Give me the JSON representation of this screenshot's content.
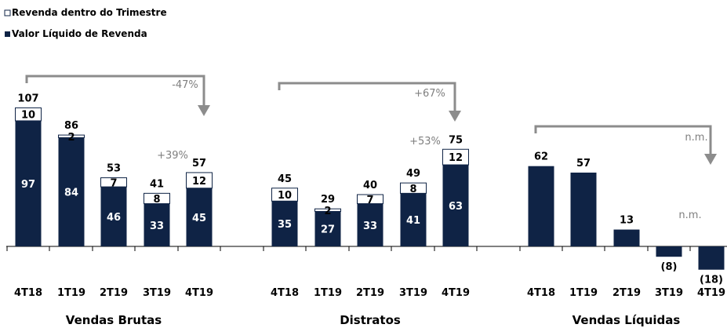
{
  "colors": {
    "dark": "#0f2345",
    "light": "#ffffff",
    "arrow": "#8c8c8c",
    "annotation": "#7f7f7f",
    "axis": "#000000"
  },
  "legend": [
    {
      "name": "Revenda dentro do Trimestre",
      "style": "outline"
    },
    {
      "name": "Valor Líquido de Revenda",
      "style": "filled"
    }
  ],
  "chart_data": {
    "type": "bar",
    "stacked": true,
    "groups": [
      {
        "title": "Vendas Brutas",
        "categories": [
          "4T18",
          "1T19",
          "2T19",
          "3T19",
          "4T19"
        ],
        "series": [
          {
            "name": "Valor Líquido de Revenda",
            "values": [
              97,
              84,
              46,
              33,
              45
            ],
            "labels": [
              "97",
              "84",
              "46",
              "33",
              "45"
            ]
          },
          {
            "name": "Revenda dentro do Trimestre",
            "values": [
              10,
              2,
              7,
              8,
              12
            ],
            "labels": [
              "10",
              "2",
              "7",
              "8",
              "12"
            ]
          }
        ],
        "totals": [
          "107",
          "86",
          "53",
          "41",
          "57"
        ],
        "annotations": [
          {
            "text": "-47%",
            "type": "arrow",
            "from": 0,
            "to": 4
          },
          {
            "text": "+39%",
            "type": "label",
            "at": 3
          }
        ]
      },
      {
        "title": "Distratos",
        "categories": [
          "4T18",
          "1T19",
          "2T19",
          "3T19",
          "4T19"
        ],
        "series": [
          {
            "name": "Valor Líquido de Revenda",
            "values": [
              35,
              27,
              33,
              41,
              63
            ],
            "labels": [
              "35",
              "27",
              "33",
              "41",
              "63"
            ]
          },
          {
            "name": "Revenda dentro do Trimestre",
            "values": [
              10,
              2,
              7,
              8,
              12
            ],
            "labels": [
              "10",
              "2",
              "7",
              "8",
              "12"
            ]
          }
        ],
        "totals": [
          "45",
          "29",
          "40",
          "49",
          "75"
        ],
        "annotations": [
          {
            "text": "+67%",
            "type": "arrow",
            "from": 0,
            "to": 4
          },
          {
            "text": "+53%",
            "type": "label",
            "at": 4
          }
        ]
      },
      {
        "title": "Vendas Líquidas",
        "categories": [
          "4T18",
          "1T19",
          "2T19",
          "3T19",
          "4T19"
        ],
        "series": [
          {
            "name": "Valor Líquido de Revenda",
            "values": [
              62,
              57,
              13,
              -8,
              -18
            ],
            "labels": []
          }
        ],
        "totals": [
          "62",
          "57",
          "13",
          "(8)",
          "(18)"
        ],
        "annotations": [
          {
            "text": "n.m.",
            "type": "arrow",
            "from": 0,
            "to": 4
          },
          {
            "text": "n.m.",
            "type": "label",
            "at": 4
          }
        ]
      }
    ],
    "legend_position": "top-left",
    "grid": false
  }
}
